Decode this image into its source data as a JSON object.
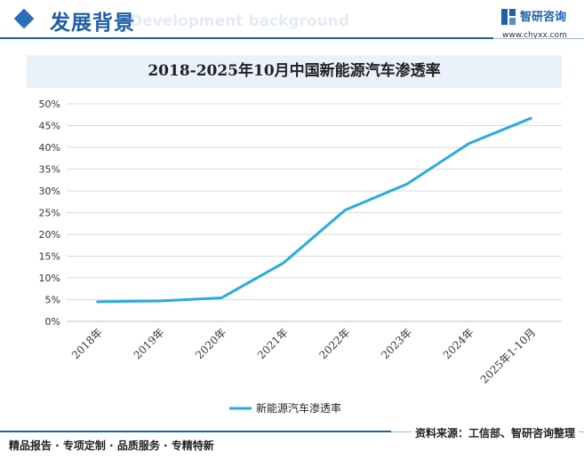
{
  "header": {
    "section_title": "发展背景",
    "section_title_en": "Development background",
    "brand_name": "智研咨询",
    "brand_url": "www.chyxx.com"
  },
  "footer": {
    "left_text": "精品报告 · 专项定制 · 品质服务 · 专精特新",
    "source_text": "资料来源：工信部、智研咨询整理"
  },
  "colors": {
    "brand_blue": "#1f5fa6",
    "line": "#29abe2",
    "title_band": "#e9f2fa"
  },
  "chart_data": {
    "type": "line",
    "title": "2018-2025年10月中国新能源汽车渗透率",
    "xlabel": "",
    "ylabel": "",
    "categories": [
      "2018年",
      "2019年",
      "2020年",
      "2021年",
      "2022年",
      "2023年",
      "2024年",
      "2025年1-10月"
    ],
    "series": [
      {
        "name": "新能源汽车渗透率",
        "values": [
          4.5,
          4.7,
          5.4,
          13.4,
          25.6,
          31.6,
          40.9,
          46.7
        ]
      }
    ],
    "y_ticks": [
      "0%",
      "5%",
      "10%",
      "15%",
      "20%",
      "25%",
      "30%",
      "35%",
      "40%",
      "45%",
      "50%"
    ],
    "ylim": [
      0,
      50
    ],
    "grid": true,
    "legend_position": "bottom-center"
  }
}
